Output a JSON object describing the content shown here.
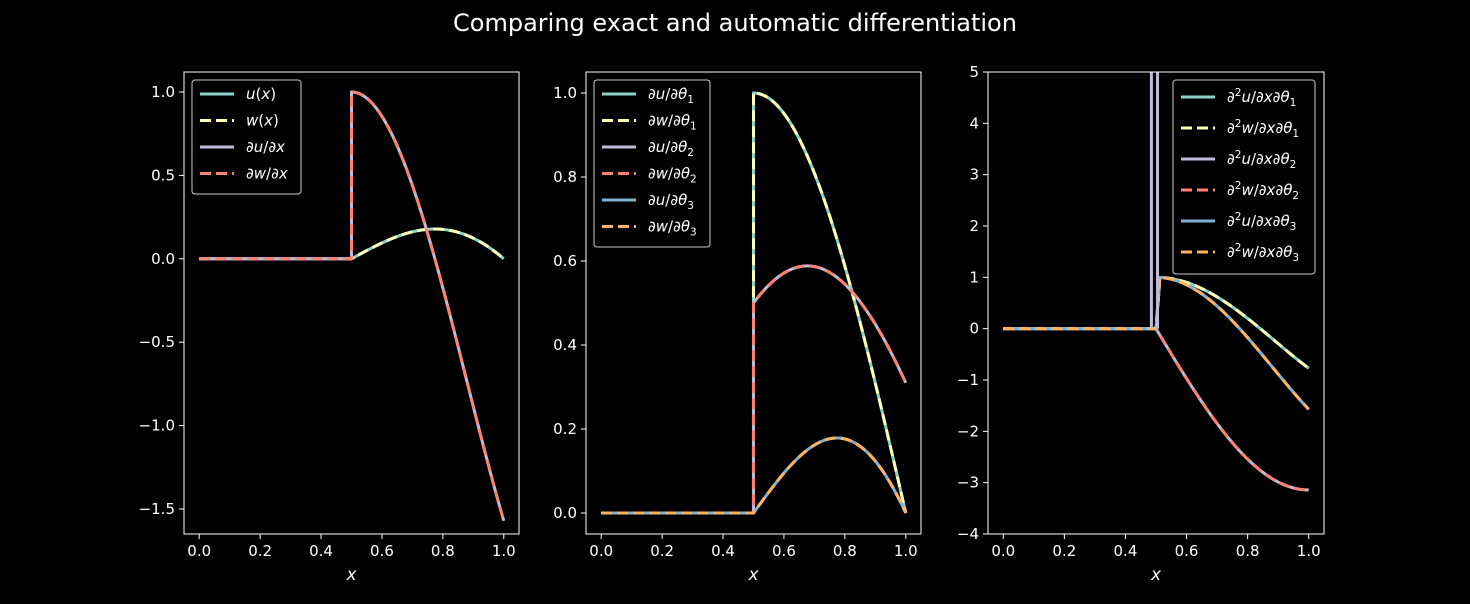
{
  "figure": {
    "title": "Comparing exact and automatic differentiation",
    "background": "#000000",
    "foreground": "#ffffff"
  },
  "chart_data": [
    {
      "type": "line",
      "xlabel": "x",
      "ylabel": "",
      "xlim": [
        -0.05,
        1.05
      ],
      "ylim": [
        -1.65,
        1.12
      ],
      "xticks": [
        0.0,
        0.2,
        0.4,
        0.6,
        0.8,
        1.0
      ],
      "xticklabels": [
        "0.0",
        "0.2",
        "0.4",
        "0.6",
        "0.8",
        "1.0"
      ],
      "yticks": [
        -1.5,
        -1.0,
        -0.5,
        0.0,
        0.5,
        1.0
      ],
      "yticklabels": [
        "−1.5",
        "−1.0",
        "−0.5",
        "0.0",
        "0.5",
        "1.0"
      ],
      "legend_position": "upper-left",
      "grid": false,
      "series": [
        {
          "name": "u(x)",
          "legend": [
            [
              "u",
              "i"
            ],
            [
              "(",
              ""
            ],
            [
              "x",
              "i"
            ],
            [
              ")",
              ""
            ]
          ],
          "color": "#8dd3c7",
          "dash": "solid",
          "fn": "u"
        },
        {
          "name": "w(x)",
          "legend": [
            [
              "w",
              "i"
            ],
            [
              "(",
              ""
            ],
            [
              "x",
              "i"
            ],
            [
              ")",
              ""
            ]
          ],
          "color": "#feffb3",
          "dash": "dashed",
          "fn": "u"
        },
        {
          "name": "∂u/∂x",
          "legend": [
            [
              "∂",
              ""
            ],
            [
              "u",
              "i"
            ],
            [
              "/∂",
              ""
            ],
            [
              "x",
              "i"
            ]
          ],
          "color": "#bfbbd9",
          "dash": "solid",
          "fn": "du_dx"
        },
        {
          "name": "∂w/∂x",
          "legend": [
            [
              "∂",
              ""
            ],
            [
              "w",
              "i"
            ],
            [
              "/∂",
              ""
            ],
            [
              "x",
              "i"
            ]
          ],
          "color": "#fa8174",
          "dash": "dashed",
          "fn": "du_dx"
        }
      ]
    },
    {
      "type": "line",
      "xlabel": "x",
      "ylabel": "",
      "xlim": [
        -0.05,
        1.05
      ],
      "ylim": [
        -0.05,
        1.05
      ],
      "xticks": [
        0.0,
        0.2,
        0.4,
        0.6,
        0.8,
        1.0
      ],
      "xticklabels": [
        "0.0",
        "0.2",
        "0.4",
        "0.6",
        "0.8",
        "1.0"
      ],
      "yticks": [
        0.0,
        0.2,
        0.4,
        0.6,
        0.8,
        1.0
      ],
      "yticklabels": [
        "0.0",
        "0.2",
        "0.4",
        "0.6",
        "0.8",
        "1.0"
      ],
      "legend_position": "upper-left",
      "grid": false,
      "series": [
        {
          "name": "∂u/∂θ1",
          "legend": [
            [
              "∂",
              ""
            ],
            [
              "u",
              "i"
            ],
            [
              "/∂",
              ""
            ],
            [
              "θ",
              "i"
            ],
            [
              "1",
              "sub"
            ]
          ],
          "color": "#8dd3c7",
          "dash": "solid",
          "fn": "du_dt1"
        },
        {
          "name": "∂w/∂θ1",
          "legend": [
            [
              "∂",
              ""
            ],
            [
              "w",
              "i"
            ],
            [
              "/∂",
              ""
            ],
            [
              "θ",
              "i"
            ],
            [
              "1",
              "sub"
            ]
          ],
          "color": "#feffb3",
          "dash": "dashed",
          "fn": "du_dt1"
        },
        {
          "name": "∂u/∂θ2",
          "legend": [
            [
              "∂",
              ""
            ],
            [
              "u",
              "i"
            ],
            [
              "/∂",
              ""
            ],
            [
              "θ",
              "i"
            ],
            [
              "2",
              "sub"
            ]
          ],
          "color": "#bfbbd9",
          "dash": "solid",
          "fn": "du_dt2"
        },
        {
          "name": "∂w/∂θ2",
          "legend": [
            [
              "∂",
              ""
            ],
            [
              "w",
              "i"
            ],
            [
              "/∂",
              ""
            ],
            [
              "θ",
              "i"
            ],
            [
              "2",
              "sub"
            ]
          ],
          "color": "#fa8174",
          "dash": "dashed",
          "fn": "du_dt2"
        },
        {
          "name": "∂u/∂θ3",
          "legend": [
            [
              "∂",
              ""
            ],
            [
              "u",
              "i"
            ],
            [
              "/∂",
              ""
            ],
            [
              "θ",
              "i"
            ],
            [
              "3",
              "sub"
            ]
          ],
          "color": "#81b1d2",
          "dash": "solid",
          "fn": "du_dt3"
        },
        {
          "name": "∂w/∂θ3",
          "legend": [
            [
              "∂",
              ""
            ],
            [
              "w",
              "i"
            ],
            [
              "/∂",
              ""
            ],
            [
              "θ",
              "i"
            ],
            [
              "3",
              "sub"
            ]
          ],
          "color": "#fdb462",
          "dash": "dashed",
          "fn": "du_dt3"
        }
      ]
    },
    {
      "type": "line",
      "xlabel": "x",
      "ylabel": "",
      "xlim": [
        -0.05,
        1.05
      ],
      "ylim": [
        -4,
        5
      ],
      "xticks": [
        0.0,
        0.2,
        0.4,
        0.6,
        0.8,
        1.0
      ],
      "xticklabels": [
        "0.0",
        "0.2",
        "0.4",
        "0.6",
        "0.8",
        "1.0"
      ],
      "yticks": [
        -4,
        -3,
        -2,
        -1,
        0,
        1,
        2,
        3,
        4,
        5
      ],
      "yticklabels": [
        "−4",
        "−3",
        "−2",
        "−1",
        "0",
        "1",
        "2",
        "3",
        "4",
        "5"
      ],
      "legend_position": "upper-right",
      "grid": false,
      "series": [
        {
          "name": "∂²u/∂x∂θ1",
          "legend": [
            [
              "∂",
              ""
            ],
            [
              "2",
              "sup"
            ],
            [
              "u",
              "i"
            ],
            [
              "/∂",
              ""
            ],
            [
              "x",
              "i"
            ],
            [
              "∂",
              ""
            ],
            [
              "θ",
              "i"
            ],
            [
              "1",
              "sub"
            ]
          ],
          "color": "#8dd3c7",
          "dash": "solid",
          "fn": "d2_t1"
        },
        {
          "name": "∂²w/∂x∂θ1",
          "legend": [
            [
              "∂",
              ""
            ],
            [
              "2",
              "sup"
            ],
            [
              "w",
              "i"
            ],
            [
              "/∂",
              ""
            ],
            [
              "x",
              "i"
            ],
            [
              "∂",
              ""
            ],
            [
              "θ",
              "i"
            ],
            [
              "1",
              "sub"
            ]
          ],
          "color": "#feffb3",
          "dash": "dashed",
          "fn": "d2_t1"
        },
        {
          "name": "∂²u/∂x∂θ2",
          "legend": [
            [
              "∂",
              ""
            ],
            [
              "2",
              "sup"
            ],
            [
              "u",
              "i"
            ],
            [
              "/∂",
              ""
            ],
            [
              "x",
              "i"
            ],
            [
              "∂",
              ""
            ],
            [
              "θ",
              "i"
            ],
            [
              "2",
              "sub"
            ]
          ],
          "color": "#bfbbd9",
          "dash": "solid",
          "fn": "d2_t2"
        },
        {
          "name": "∂²w/∂x∂θ2",
          "legend": [
            [
              "∂",
              ""
            ],
            [
              "2",
              "sup"
            ],
            [
              "w",
              "i"
            ],
            [
              "/∂",
              ""
            ],
            [
              "x",
              "i"
            ],
            [
              "∂",
              ""
            ],
            [
              "θ",
              "i"
            ],
            [
              "2",
              "sub"
            ]
          ],
          "color": "#fa8174",
          "dash": "dashed",
          "fn": "d2_t2"
        },
        {
          "name": "∂²u/∂x∂θ3",
          "legend": [
            [
              "∂",
              ""
            ],
            [
              "2",
              "sup"
            ],
            [
              "u",
              "i"
            ],
            [
              "/∂",
              ""
            ],
            [
              "x",
              "i"
            ],
            [
              "∂",
              ""
            ],
            [
              "θ",
              "i"
            ],
            [
              "3",
              "sub"
            ]
          ],
          "color": "#81b1d2",
          "dash": "solid",
          "fn": "d2_t3"
        },
        {
          "name": "∂²w/∂x∂θ3",
          "legend": [
            [
              "∂",
              ""
            ],
            [
              "2",
              "sup"
            ],
            [
              "w",
              "i"
            ],
            [
              "/∂",
              ""
            ],
            [
              "x",
              "i"
            ],
            [
              "∂",
              ""
            ],
            [
              "θ",
              "i"
            ],
            [
              "3",
              "sub"
            ]
          ],
          "color": "#fdb462",
          "dash": "dashed",
          "fn": "d2_t3"
        }
      ]
    }
  ]
}
